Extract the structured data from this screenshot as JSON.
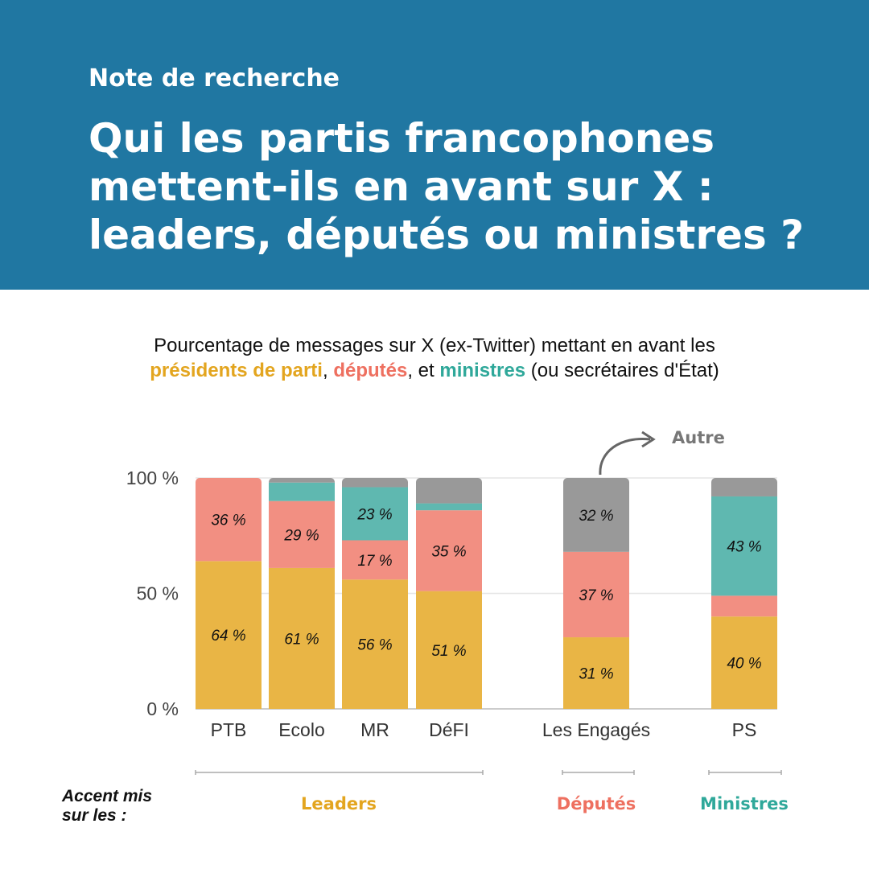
{
  "header": {
    "kicker": "Note de recherche",
    "title": "Qui les partis francophones mettent-ils en avant sur X : leaders, députés ou ministres ?"
  },
  "subtitle": {
    "line1": "Pourcentage de messages sur X (ex-Twitter) mettant en avant les",
    "presidents": "présidents de parti",
    "sep1": ", ",
    "deputes": "députés",
    "sep2": ", et ",
    "ministres": "ministres",
    "tail": " (ou secrétaires d'État)"
  },
  "chart_data": {
    "type": "bar",
    "stacked": true,
    "categories": [
      "PTB",
      "Ecolo",
      "MR",
      "DéFI",
      "Les Engagés",
      "PS"
    ],
    "series": [
      {
        "name": "Présidents de parti",
        "color": "#e9b545",
        "values": [
          64,
          61,
          56,
          51,
          31,
          40
        ]
      },
      {
        "name": "Députés",
        "color": "#f28f82",
        "values": [
          36,
          29,
          17,
          35,
          37,
          9
        ]
      },
      {
        "name": "Ministres",
        "color": "#5fb8b0",
        "values": [
          0,
          8,
          23,
          3,
          0,
          43
        ]
      },
      {
        "name": "Autre",
        "color": "#999999",
        "values": [
          0,
          2,
          4,
          11,
          32,
          8
        ]
      }
    ],
    "labels": [
      [
        "64 %",
        "61 %",
        "56 %",
        "51 %",
        "31 %",
        "40 %"
      ],
      [
        "36 %",
        "29 %",
        "17 %",
        "35 %",
        "37 %",
        ""
      ],
      [
        "",
        "",
        "23 %",
        "",
        "",
        "43 %"
      ],
      [
        "",
        "",
        "",
        "",
        "32 %",
        ""
      ]
    ],
    "yticks": [
      "0 %",
      "50 %",
      "100 %"
    ],
    "ylim": [
      0,
      100
    ],
    "annotation": "Autre"
  },
  "footer": {
    "accent_label": "Accent mis sur les :",
    "groups": [
      "Leaders",
      "Députés",
      "Ministres"
    ]
  }
}
